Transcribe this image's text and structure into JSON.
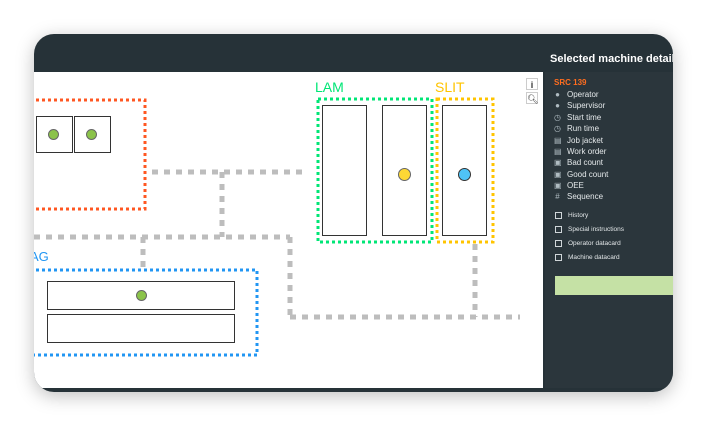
{
  "panel": {
    "title": "Selected machine details",
    "machine": "SRC 139",
    "fields": [
      {
        "icon": "person-icon",
        "label": "Operator"
      },
      {
        "icon": "person-icon",
        "label": "Supervisor"
      },
      {
        "icon": "clock-icon",
        "label": "Start time"
      },
      {
        "icon": "clock-icon",
        "label": "Run time"
      },
      {
        "icon": "document-icon",
        "label": "Job jacket"
      },
      {
        "icon": "document-icon",
        "label": "Work order"
      },
      {
        "icon": "chart-icon",
        "label": "Bad count"
      },
      {
        "icon": "chart-icon",
        "label": "Good count"
      },
      {
        "icon": "chart-icon",
        "label": "OEE"
      },
      {
        "icon": "hash-icon",
        "label": "Sequence"
      }
    ],
    "links": [
      "History",
      "Special instructions",
      "Operator datacard",
      "Machine datacard"
    ]
  },
  "diagram": {
    "groups": {
      "lam": "LAM",
      "slit": "SLIT",
      "ag": "AG"
    },
    "colors": {
      "orange": "#ff5722",
      "green": "#00e676",
      "yellow": "#ffc400",
      "blue": "#2196f3",
      "grey": "#bdbdbd",
      "status_green": "#8bc34a",
      "status_yellow": "#fdd835",
      "status_cyan": "#4fc3f7"
    },
    "tools": {
      "info": "i",
      "zoom": "zoom-icon"
    }
  }
}
